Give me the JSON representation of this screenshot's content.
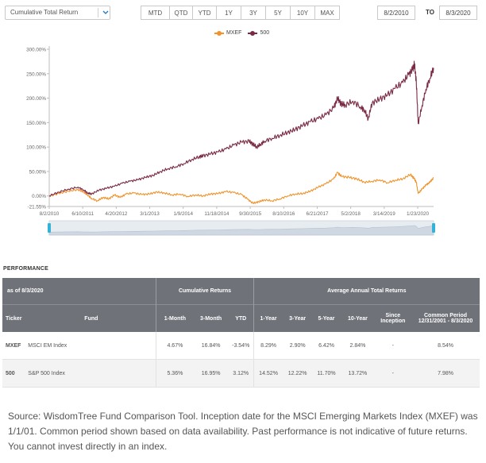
{
  "toolbar": {
    "metric_select": "Cumulative Total Return",
    "ranges": [
      "MTD",
      "QTD",
      "YTD",
      "1Y",
      "3Y",
      "5Y",
      "10Y",
      "MAX"
    ],
    "date_from": "8/2/2010",
    "to_label": "TO",
    "date_to": "8/3/2020"
  },
  "legend": [
    {
      "name": "MXEF",
      "color": "#f0932b"
    },
    {
      "name": "500",
      "color": "#7a2a43"
    }
  ],
  "chart_data": {
    "type": "line",
    "y_ticks": [
      "300.00%",
      "250.00%",
      "200.00%",
      "150.00%",
      "100.00%",
      "50.00%",
      "0.00%",
      "-21.55%"
    ],
    "x_ticks": [
      "8/2/2010",
      "6/10/2011",
      "4/20/2012",
      "3/1/2013",
      "1/9/2014",
      "11/18/2014",
      "9/30/2015",
      "8/10/2016",
      "6/21/2017",
      "5/2/2018",
      "3/14/2019",
      "1/23/2020"
    ],
    "ylim": [
      -21.55,
      300
    ],
    "xlim": [
      0,
      10.0
    ],
    "series": [
      {
        "name": "MXEF",
        "color": "#f0932b",
        "x": [
          0,
          0.25,
          0.5,
          0.75,
          0.9,
          1.0,
          1.1,
          1.25,
          1.4,
          1.55,
          1.7,
          1.85,
          2.0,
          2.2,
          2.4,
          2.6,
          2.8,
          3.0,
          3.2,
          3.4,
          3.6,
          3.8,
          4.0,
          4.2,
          4.4,
          4.6,
          4.8,
          5.0,
          5.15,
          5.3,
          5.45,
          5.6,
          5.8,
          6.0,
          6.2,
          6.4,
          6.6,
          6.8,
          7.0,
          7.2,
          7.4,
          7.5,
          7.6,
          7.8,
          8.0,
          8.2,
          8.4,
          8.6,
          8.8,
          9.0,
          9.2,
          9.4,
          9.5,
          9.55,
          9.6,
          9.7,
          9.8,
          9.9,
          10.0
        ],
        "y": [
          0,
          5,
          10,
          13,
          8,
          2,
          -5,
          -10,
          -3,
          -6,
          2,
          -3,
          4,
          6,
          3,
          4,
          8,
          6,
          2,
          4,
          -1,
          2,
          0,
          4,
          5,
          9,
          7,
          3,
          -6,
          -15,
          -12,
          -8,
          -10,
          -6,
          0,
          4,
          5,
          10,
          18,
          25,
          35,
          48,
          40,
          38,
          35,
          28,
          30,
          33,
          27,
          32,
          35,
          44,
          35,
          28,
          5,
          14,
          22,
          28,
          37
        ]
      },
      {
        "name": "500",
        "color": "#7a2a43",
        "x": [
          0,
          0.25,
          0.5,
          0.75,
          0.9,
          1.0,
          1.1,
          1.3,
          1.5,
          1.7,
          1.9,
          2.1,
          2.3,
          2.5,
          2.7,
          2.9,
          3.1,
          3.3,
          3.5,
          3.7,
          3.9,
          4.0,
          4.2,
          4.4,
          4.6,
          4.8,
          5.0,
          5.2,
          5.3,
          5.4,
          5.5,
          5.6,
          5.8,
          6.0,
          6.2,
          6.4,
          6.6,
          6.8,
          7.0,
          7.2,
          7.4,
          7.5,
          7.6,
          7.7,
          7.9,
          8.1,
          8.2,
          8.3,
          8.4,
          8.6,
          8.8,
          9.0,
          9.2,
          9.35,
          9.45,
          9.5,
          9.55,
          9.6,
          9.7,
          9.8,
          9.9,
          10.0
        ],
        "y": [
          0,
          8,
          14,
          18,
          12,
          6,
          4,
          12,
          16,
          20,
          26,
          30,
          33,
          38,
          42,
          50,
          56,
          60,
          66,
          74,
          80,
          82,
          86,
          90,
          96,
          104,
          110,
          112,
          106,
          100,
          106,
          112,
          118,
          124,
          130,
          136,
          144,
          152,
          158,
          166,
          180,
          200,
          188,
          186,
          194,
          182,
          176,
          158,
          190,
          198,
          206,
          220,
          232,
          248,
          258,
          270,
          235,
          148,
          185,
          218,
          240,
          262
        ]
      }
    ]
  },
  "performance": {
    "title": "PERFORMANCE",
    "as_of": "as of 8/3/2020",
    "group_cumulative": "Cumulative Returns",
    "group_annual": "Average Annual Total Returns",
    "col_ticker": "Ticker",
    "col_fund": "Fund",
    "col_1m": "1-Month",
    "col_3m": "3-Month",
    "col_ytd": "YTD",
    "col_1y": "1-Year",
    "col_3y": "3-Year",
    "col_5y": "5-Year",
    "col_10y": "10-Year",
    "col_since_1": "Since",
    "col_since_2": "Inception",
    "col_common_1": "Common Period",
    "col_common_2": "12/31/2001 - 8/3/2020",
    "rows": [
      {
        "ticker": "MXEF",
        "fund": "MSCI EM Index",
        "m1": "4.67%",
        "m3": "16.84%",
        "ytd": "-3.54%",
        "y1": "8.29%",
        "y3": "2.90%",
        "y5": "6.42%",
        "y10": "2.84%",
        "since": "-",
        "common": "8.54%"
      },
      {
        "ticker": "500",
        "fund": "S&P 500 Index",
        "m1": "5.36%",
        "m3": "16.95%",
        "ytd": "3.12%",
        "y1": "14.52%",
        "y3": "12.22%",
        "y5": "11.70%",
        "y10": "13.72%",
        "since": "-",
        "common": "7.98%"
      }
    ]
  },
  "footnote": "Source: WisdomTree Fund Comparison Tool. Inception date for the MSCI Emerging Markets Index (MXEF) was 1/1/01. Common period shown based on data availability. Past performance is not indicative of future returns. You cannot invest directly in an index."
}
